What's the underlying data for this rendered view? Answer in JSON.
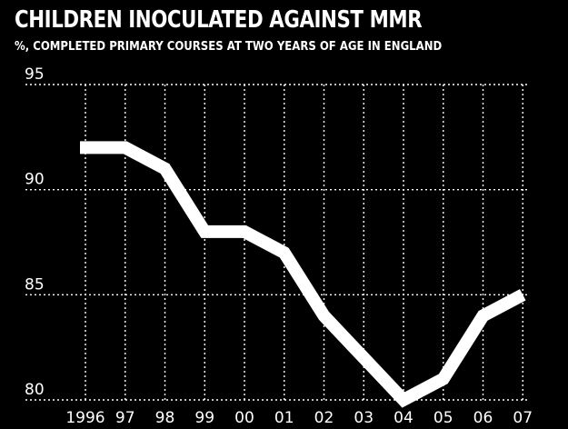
{
  "chart_data": {
    "type": "line",
    "title": "CHILDREN INOCULATED AGAINST MMR",
    "subtitle": "%, COMPLETED PRIMARY COURSES AT TWO YEARS OF AGE IN ENGLAND",
    "xlabel": "",
    "ylabel": "",
    "categories": [
      "1996",
      "97",
      "98",
      "99",
      "00",
      "01",
      "02",
      "03",
      "04",
      "05",
      "06",
      "07"
    ],
    "values": [
      92,
      92,
      91,
      88,
      88,
      87,
      84,
      82,
      80,
      81,
      84,
      85
    ],
    "ylim": [
      80,
      95
    ],
    "yticks": [
      "95",
      "90",
      "85",
      "80"
    ],
    "grid": true,
    "colors": {
      "background": "#000000",
      "line": "#ffffff",
      "grid": "#ffffff",
      "text": "#ffffff"
    }
  }
}
